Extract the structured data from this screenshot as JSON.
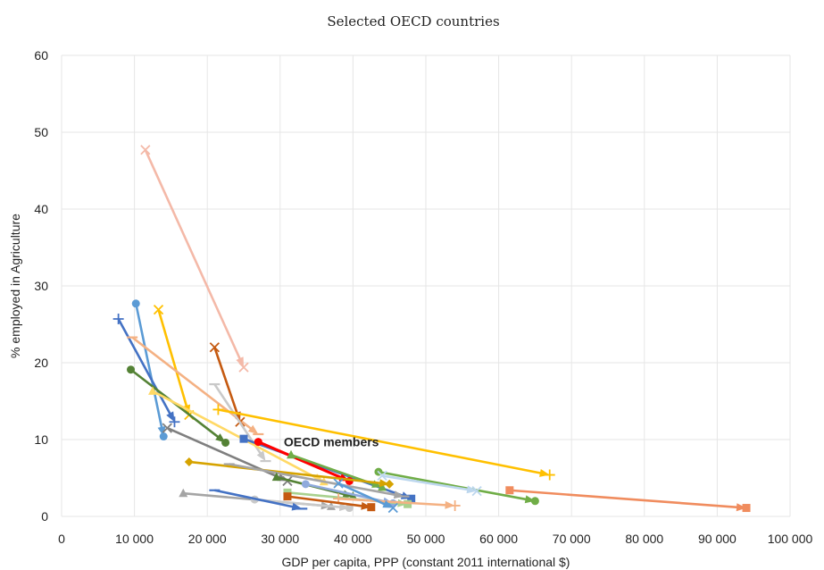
{
  "chart_data": {
    "type": "scatter",
    "title": "Selected OECD countries",
    "xlabel": "GDP per capita, PPP (constant 2011 international $)",
    "ylabel": "% employed in Agriculture",
    "xlim": [
      0,
      100000
    ],
    "ylim": [
      0,
      60
    ],
    "x_ticks": [
      0,
      10000,
      20000,
      30000,
      40000,
      50000,
      60000,
      70000,
      80000,
      90000,
      100000
    ],
    "x_tick_labels": [
      "0",
      "10 000",
      "20 000",
      "30 000",
      "40 000",
      "50 000",
      "60 000",
      "70 000",
      "80 000",
      "90 000",
      "100 000"
    ],
    "y_ticks": [
      0,
      10,
      20,
      30,
      40,
      50,
      60
    ],
    "y_tick_labels": [
      "0",
      "10",
      "20",
      "30",
      "40",
      "50",
      "60"
    ],
    "grid": true,
    "legend": "none",
    "annotations": [
      {
        "text": "OECD members",
        "x": 30500,
        "y": 9.7
      }
    ],
    "series": [
      {
        "color": "#f4b9a8",
        "marker": "x",
        "x": [
          11500,
          25000
        ],
        "y": [
          47.7,
          19.4
        ]
      },
      {
        "color": "#5b9bd5",
        "marker": "circle",
        "x": [
          10200,
          14000
        ],
        "y": [
          27.7,
          10.4
        ]
      },
      {
        "color": "#4472c4",
        "marker": "plus",
        "x": [
          7800,
          15500
        ],
        "y": [
          25.7,
          12.3
        ]
      },
      {
        "color": "#ffc000",
        "marker": "x",
        "x": [
          13300,
          17500
        ],
        "y": [
          26.9,
          13.2
        ]
      },
      {
        "color": "#f4b183",
        "marker": "dash",
        "x": [
          9700,
          27000
        ],
        "y": [
          23.3,
          10.7
        ]
      },
      {
        "color": "#c55a11",
        "marker": "x",
        "x": [
          21000,
          24500
        ],
        "y": [
          22.0,
          12.3
        ]
      },
      {
        "color": "#548235",
        "marker": "circle",
        "x": [
          9500,
          22500
        ],
        "y": [
          19.1,
          9.6
        ]
      },
      {
        "color": "#c9c9c9",
        "marker": "dash",
        "x": [
          21000,
          28000
        ],
        "y": [
          17.2,
          7.2
        ]
      },
      {
        "color": "#ffd966",
        "marker": "triangle",
        "x": [
          12500,
          36000
        ],
        "y": [
          16.3,
          4.5
        ]
      },
      {
        "color": "#7f7f7f",
        "marker": "x",
        "x": [
          14500,
          31000
        ],
        "y": [
          11.5,
          4.6
        ]
      },
      {
        "color": "#ffc000",
        "marker": "plus",
        "x": [
          21500,
          67000
        ],
        "y": [
          13.9,
          5.4
        ]
      },
      {
        "color": "#4472c4",
        "marker": "square",
        "x": [
          25000,
          48000
        ],
        "y": [
          10.1,
          2.3
        ]
      },
      {
        "color": "#ff0000",
        "marker": "circle",
        "x": [
          27000,
          39500
        ],
        "y": [
          9.7,
          4.6
        ]
      },
      {
        "color": "#70ad47",
        "marker": "triangle",
        "x": [
          31500,
          44000
        ],
        "y": [
          8.0,
          3.8
        ]
      },
      {
        "color": "#d6a300",
        "marker": "diamond",
        "x": [
          17500,
          45000
        ],
        "y": [
          7.1,
          4.2
        ]
      },
      {
        "color": "#a5a5a5",
        "marker": "dash",
        "x": [
          23000,
          47000
        ],
        "y": [
          6.8,
          2.6
        ]
      },
      {
        "color": "#70ad47",
        "marker": "circle",
        "x": [
          43500,
          65000
        ],
        "y": [
          5.8,
          2.0
        ]
      },
      {
        "color": "#bdd7ee",
        "marker": "x",
        "x": [
          44000,
          57000
        ],
        "y": [
          5.3,
          3.3
        ]
      },
      {
        "color": "#548235",
        "marker": "triangle",
        "x": [
          29500,
          40000
        ],
        "y": [
          5.1,
          2.6
        ]
      },
      {
        "color": "#8faadc",
        "marker": "circle",
        "x": [
          33500,
          45500
        ],
        "y": [
          4.2,
          1.7
        ]
      },
      {
        "color": "#a9d18e",
        "marker": "square",
        "x": [
          31000,
          47500
        ],
        "y": [
          3.1,
          1.6
        ]
      },
      {
        "color": "#f4b183",
        "marker": "plus",
        "x": [
          38000,
          54000
        ],
        "y": [
          2.3,
          1.4
        ]
      },
      {
        "color": "#a5a5a5",
        "marker": "triangle",
        "x": [
          16700,
          37000
        ],
        "y": [
          3.0,
          1.3
        ]
      },
      {
        "color": "#c9c9c9",
        "marker": "circle",
        "x": [
          26500,
          39500
        ],
        "y": [
          2.2,
          1.1
        ]
      },
      {
        "color": "#4472c4",
        "marker": "dash",
        "x": [
          21000,
          33000
        ],
        "y": [
          3.4,
          1.0
        ]
      },
      {
        "color": "#c55a11",
        "marker": "square",
        "x": [
          31000,
          42500
        ],
        "y": [
          2.6,
          1.2
        ]
      },
      {
        "color": "#f08c5e",
        "marker": "square",
        "x": [
          61500,
          94000
        ],
        "y": [
          3.4,
          1.1
        ]
      },
      {
        "color": "#5b9bd5",
        "marker": "x",
        "x": [
          38000,
          45500
        ],
        "y": [
          4.3,
          1.1
        ]
      }
    ]
  }
}
